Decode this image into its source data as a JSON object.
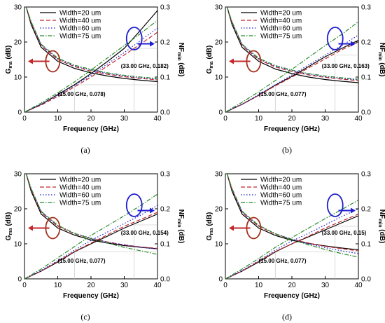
{
  "legend": [
    {
      "label": "Width=20 um",
      "color": "#000000",
      "dash": ""
    },
    {
      "label": "Width=40 um",
      "color": "#c0282c",
      "dash": "6,3"
    },
    {
      "label": "Width=60 um",
      "color": "#1f1fd0",
      "dash": "1.5,2.5"
    },
    {
      "label": "Width=75 um",
      "color": "#2a8a2a",
      "dash": "6,2,1.5,2"
    }
  ],
  "axis_text": {
    "xlabel": "Frequency (GHz)",
    "ylabel_left_main": "G",
    "ylabel_left_sub": "ma",
    "ylabel_left_unit": " (dB)",
    "ylabel_right_main": "NF",
    "ylabel_right_sub": "min",
    "ylabel_right_unit": " (dB)"
  },
  "chart_data": [
    {
      "type": "line",
      "panel": "(a)",
      "xlim": [
        0,
        40
      ],
      "ylim_left": [
        0,
        30
      ],
      "ylim_right": [
        0,
        0.3
      ],
      "xticks": [
        0,
        10,
        20,
        30,
        40
      ],
      "yticks_left": [
        0,
        10,
        20,
        30
      ],
      "yticks_right": [
        0.0,
        0.1,
        0.2,
        0.3
      ],
      "grid": false,
      "annotations": [
        {
          "text": "(15.00 GHz, 0.078)",
          "x": 15,
          "y": 0.078,
          "axis": "right"
        },
        {
          "text": "(33.00 GHz, 0.182)",
          "x": 33,
          "y": 0.182,
          "axis": "right"
        }
      ],
      "gma_series": [
        {
          "name": "Width=20 um",
          "x": [
            0.5,
            2,
            5,
            10,
            15,
            20,
            25,
            30,
            35,
            40
          ],
          "y": [
            30,
            25,
            18.5,
            14.5,
            12.5,
            11.2,
            10.3,
            9.6,
            9.1,
            8.7
          ]
        },
        {
          "name": "Width=40 um",
          "x": [
            0.5,
            2,
            5,
            10,
            15,
            20,
            25,
            30,
            35,
            40
          ],
          "y": [
            30,
            25.5,
            19,
            15,
            13,
            11.7,
            10.8,
            10.1,
            9.6,
            9.2
          ]
        },
        {
          "name": "Width=60 um",
          "x": [
            0.5,
            2,
            5,
            10,
            15,
            20,
            25,
            30,
            35,
            40
          ],
          "y": [
            30,
            25.7,
            19.2,
            15.2,
            13.2,
            12,
            11,
            10.3,
            9.8,
            9.4
          ]
        },
        {
          "name": "Width=75 um",
          "x": [
            0.5,
            2,
            5,
            10,
            15,
            20,
            25,
            30,
            35,
            40
          ],
          "y": [
            30,
            25.8,
            19.4,
            15.4,
            13.4,
            12.2,
            11.2,
            10.5,
            10,
            9.6
          ]
        }
      ],
      "nf_series": [
        {
          "name": "Width=20 um",
          "x": [
            0,
            5,
            10,
            15,
            20,
            25,
            30,
            35,
            40
          ],
          "y": [
            0,
            0.022,
            0.05,
            0.078,
            0.11,
            0.145,
            0.182,
            0.235,
            0.29
          ]
        },
        {
          "name": "Width=40 um",
          "x": [
            0,
            5,
            10,
            15,
            20,
            25,
            30,
            35,
            40
          ],
          "y": [
            0,
            0.02,
            0.045,
            0.072,
            0.1,
            0.132,
            0.163,
            0.195,
            0.228
          ]
        },
        {
          "name": "Width=60 um",
          "x": [
            0,
            5,
            10,
            15,
            20,
            25,
            30,
            35,
            40
          ],
          "y": [
            0,
            0.022,
            0.048,
            0.076,
            0.105,
            0.138,
            0.17,
            0.205,
            0.24
          ]
        },
        {
          "name": "Width=75 um",
          "x": [
            0,
            5,
            10,
            15,
            20,
            25,
            30,
            35,
            40
          ],
          "y": [
            0,
            0.026,
            0.055,
            0.086,
            0.12,
            0.155,
            0.19,
            0.225,
            0.262
          ]
        }
      ]
    },
    {
      "type": "line",
      "panel": "(b)",
      "xlim": [
        0,
        40
      ],
      "ylim_left": [
        0,
        30
      ],
      "ylim_right": [
        0,
        0.3
      ],
      "xticks": [
        0,
        10,
        20,
        30,
        40
      ],
      "yticks_left": [
        0,
        10,
        20,
        30
      ],
      "yticks_right": [
        0.0,
        0.1,
        0.2,
        0.3
      ],
      "grid": false,
      "annotations": [
        {
          "text": "(15.00 GHz, 0.077)",
          "x": 15,
          "y": 0.077,
          "axis": "right"
        },
        {
          "text": "(33.00 GHz, 0.163)",
          "x": 33,
          "y": 0.163,
          "axis": "right"
        }
      ],
      "gma_series": [
        {
          "name": "Width=20 um",
          "x": [
            0.5,
            2,
            5,
            10,
            15,
            20,
            25,
            30,
            35,
            40
          ],
          "y": [
            30,
            25,
            18.5,
            14.5,
            12.3,
            11,
            10,
            9.3,
            8.8,
            8.4
          ]
        },
        {
          "name": "Width=40 um",
          "x": [
            0.5,
            2,
            5,
            10,
            15,
            20,
            25,
            30,
            35,
            40
          ],
          "y": [
            30,
            25.5,
            19,
            15,
            12.9,
            11.6,
            10.6,
            9.9,
            9.4,
            9
          ]
        },
        {
          "name": "Width=60 um",
          "x": [
            0.5,
            2,
            5,
            10,
            15,
            20,
            25,
            30,
            35,
            40
          ],
          "y": [
            30,
            25.7,
            19.2,
            15.2,
            13.1,
            11.8,
            10.8,
            10.1,
            9.6,
            9.2
          ]
        },
        {
          "name": "Width=75 um",
          "x": [
            0.5,
            2,
            5,
            10,
            15,
            20,
            25,
            30,
            35,
            40
          ],
          "y": [
            30,
            25.8,
            19.4,
            15.4,
            13.3,
            12,
            11,
            10.3,
            9.8,
            9.4
          ]
        }
      ],
      "nf_series": [
        {
          "name": "Width=20 um",
          "x": [
            0,
            5,
            10,
            15,
            20,
            25,
            30,
            35,
            40
          ],
          "y": [
            0,
            0.022,
            0.048,
            0.077,
            0.102,
            0.13,
            0.158,
            0.182,
            0.205
          ]
        },
        {
          "name": "Width=40 um",
          "x": [
            0,
            5,
            10,
            15,
            20,
            25,
            30,
            35,
            40
          ],
          "y": [
            0,
            0.022,
            0.048,
            0.075,
            0.1,
            0.126,
            0.152,
            0.178,
            0.2
          ]
        },
        {
          "name": "Width=60 um",
          "x": [
            0,
            5,
            10,
            15,
            20,
            25,
            30,
            35,
            40
          ],
          "y": [
            0,
            0.023,
            0.05,
            0.078,
            0.106,
            0.135,
            0.163,
            0.19,
            0.22
          ]
        },
        {
          "name": "Width=75 um",
          "x": [
            0,
            5,
            10,
            15,
            20,
            25,
            30,
            35,
            40
          ],
          "y": [
            0,
            0.028,
            0.058,
            0.09,
            0.122,
            0.156,
            0.19,
            0.222,
            0.258
          ]
        }
      ]
    },
    {
      "type": "line",
      "panel": "(c)",
      "xlim": [
        0,
        40
      ],
      "ylim_left": [
        0,
        30
      ],
      "ylim_right": [
        0,
        0.3
      ],
      "xticks": [
        0,
        10,
        20,
        30,
        40
      ],
      "yticks_left": [
        0,
        10,
        20,
        30
      ],
      "yticks_right": [
        0.0,
        0.1,
        0.2,
        0.3
      ],
      "grid": false,
      "annotations": [
        {
          "text": "(15.00 GHz, 0.077)",
          "x": 15,
          "y": 0.077,
          "axis": "right"
        },
        {
          "text": "(33.00 GHz, 0.154)",
          "x": 33,
          "y": 0.154,
          "axis": "right"
        }
      ],
      "gma_series": [
        {
          "name": "Width=20 um",
          "x": [
            0.5,
            2,
            5,
            10,
            15,
            20,
            25,
            30,
            35,
            40
          ],
          "y": [
            30,
            25,
            18.5,
            14.5,
            12.5,
            11.1,
            10.2,
            9.5,
            9,
            8.6
          ]
        },
        {
          "name": "Width=40 um",
          "x": [
            0.5,
            2,
            5,
            10,
            15,
            20,
            25,
            30,
            35,
            40
          ],
          "y": [
            30,
            25.5,
            19,
            15,
            12.9,
            11.5,
            10.5,
            9.7,
            9.1,
            8.7
          ]
        },
        {
          "name": "Width=60 um",
          "x": [
            0.5,
            2,
            5,
            10,
            15,
            20,
            25,
            30,
            35,
            40
          ],
          "y": [
            30,
            25.7,
            19.2,
            15.2,
            13,
            11.6,
            10.5,
            9.7,
            9,
            8.5
          ]
        },
        {
          "name": "Width=75 um",
          "x": [
            0.5,
            2,
            5,
            10,
            15,
            20,
            25,
            30,
            35,
            40
          ],
          "y": [
            30,
            25.8,
            19.3,
            15.3,
            13,
            11.5,
            10.2,
            9,
            8,
            7
          ]
        }
      ],
      "nf_series": [
        {
          "name": "Width=20 um",
          "x": [
            0,
            5,
            10,
            15,
            20,
            25,
            30,
            35,
            40
          ],
          "y": [
            0,
            0.022,
            0.048,
            0.077,
            0.1,
            0.122,
            0.145,
            0.165,
            0.185
          ]
        },
        {
          "name": "Width=40 um",
          "x": [
            0,
            5,
            10,
            15,
            20,
            25,
            30,
            35,
            40
          ],
          "y": [
            0,
            0.022,
            0.05,
            0.078,
            0.102,
            0.126,
            0.15,
            0.17,
            0.19
          ]
        },
        {
          "name": "Width=60 um",
          "x": [
            0,
            5,
            10,
            15,
            20,
            25,
            30,
            35,
            40
          ],
          "y": [
            0,
            0.024,
            0.052,
            0.082,
            0.11,
            0.134,
            0.158,
            0.182,
            0.21
          ]
        },
        {
          "name": "Width=75 um",
          "x": [
            0,
            5,
            10,
            15,
            20,
            25,
            30,
            35,
            40
          ],
          "y": [
            0,
            0.028,
            0.06,
            0.092,
            0.124,
            0.152,
            0.18,
            0.21,
            0.242
          ]
        }
      ]
    },
    {
      "type": "line",
      "panel": "(d)",
      "xlim": [
        0,
        40
      ],
      "ylim_left": [
        0,
        30
      ],
      "ylim_right": [
        0,
        0.3
      ],
      "xticks": [
        0,
        10,
        20,
        30,
        40
      ],
      "yticks_left": [
        0,
        10,
        20,
        30
      ],
      "yticks_right": [
        0.0,
        0.1,
        0.2,
        0.3
      ],
      "grid": false,
      "annotations": [
        {
          "text": "(15.00 GHz, 0.077)",
          "x": 15,
          "y": 0.077,
          "axis": "right"
        },
        {
          "text": "(33.00 GHz, 0.15)",
          "x": 33,
          "y": 0.15,
          "axis": "right"
        }
      ],
      "gma_series": [
        {
          "name": "Width=20 um",
          "x": [
            0.5,
            2,
            5,
            10,
            15,
            20,
            25,
            30,
            35,
            40
          ],
          "y": [
            30,
            25,
            18.5,
            14.5,
            12.4,
            11,
            10.1,
            9.4,
            8.8,
            8.3
          ]
        },
        {
          "name": "Width=40 um",
          "x": [
            0.5,
            2,
            5,
            10,
            15,
            20,
            25,
            30,
            35,
            40
          ],
          "y": [
            30,
            25.5,
            19,
            15,
            12.8,
            11.3,
            10.2,
            9.3,
            8.6,
            8
          ]
        },
        {
          "name": "Width=60 um",
          "x": [
            0.5,
            2,
            5,
            10,
            15,
            20,
            25,
            30,
            35,
            40
          ],
          "y": [
            30,
            25.7,
            19.2,
            15.2,
            12.9,
            11.3,
            10,
            8.9,
            8,
            7.2
          ]
        },
        {
          "name": "Width=75 um",
          "x": [
            0.5,
            2,
            5,
            10,
            15,
            20,
            25,
            30,
            35,
            40
          ],
          "y": [
            30,
            25.8,
            19.3,
            15.3,
            12.9,
            11.2,
            9.7,
            8.4,
            7.2,
            6.2
          ]
        }
      ],
      "nf_series": [
        {
          "name": "Width=20 um",
          "x": [
            0,
            5,
            10,
            15,
            20,
            25,
            30,
            35,
            40
          ],
          "y": [
            0,
            0.022,
            0.048,
            0.077,
            0.1,
            0.12,
            0.14,
            0.16,
            0.18
          ]
        },
        {
          "name": "Width=40 um",
          "x": [
            0,
            5,
            10,
            15,
            20,
            25,
            30,
            35,
            40
          ],
          "y": [
            0,
            0.022,
            0.05,
            0.078,
            0.1,
            0.122,
            0.145,
            0.165,
            0.185
          ]
        },
        {
          "name": "Width=60 um",
          "x": [
            0,
            5,
            10,
            15,
            20,
            25,
            30,
            35,
            40
          ],
          "y": [
            0,
            0.024,
            0.052,
            0.082,
            0.108,
            0.13,
            0.154,
            0.178,
            0.2
          ]
        },
        {
          "name": "Width=75 um",
          "x": [
            0,
            5,
            10,
            15,
            20,
            25,
            30,
            35,
            40
          ],
          "y": [
            0,
            0.028,
            0.058,
            0.09,
            0.118,
            0.145,
            0.172,
            0.198,
            0.225
          ]
        }
      ]
    }
  ]
}
